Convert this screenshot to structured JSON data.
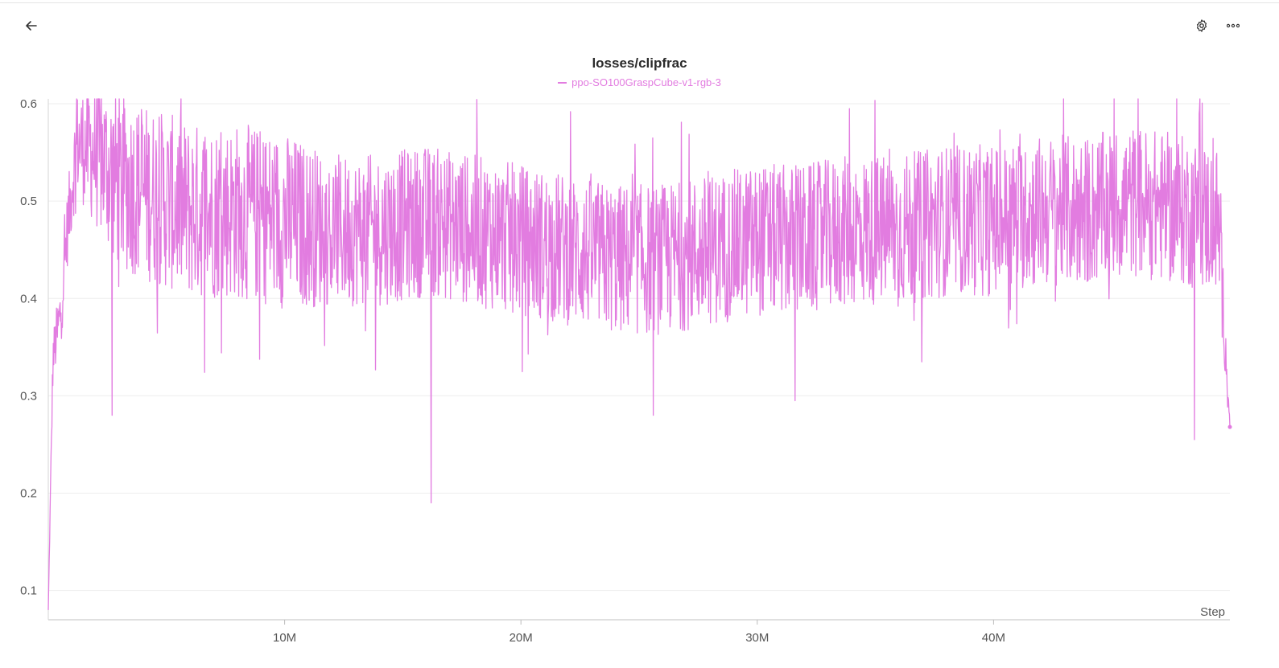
{
  "toolbar": {
    "back_icon": "arrow-left-icon",
    "settings_icon": "gear-icon",
    "more_icon": "more-horizontal-icon"
  },
  "chart_data": {
    "type": "line",
    "title": "losses/clipfrac",
    "xlabel": "Step",
    "ylabel": "",
    "xlim": [
      0,
      50000000
    ],
    "ylim": [
      0.07,
      0.605
    ],
    "x_ticks": [
      10000000,
      20000000,
      30000000,
      40000000
    ],
    "x_tick_labels": [
      "10M",
      "20M",
      "30M",
      "40M"
    ],
    "y_ticks": [
      0.1,
      0.2,
      0.3,
      0.4,
      0.5,
      0.6
    ],
    "y_tick_labels": [
      "0.1",
      "0.2",
      "0.3",
      "0.4",
      "0.5",
      "0.6"
    ],
    "grid": true,
    "legend_position": "top-center",
    "series": [
      {
        "name": "ppo-SO100GraspCube-v1-rgb-3",
        "color": "#e27ce0",
        "x": [
          0,
          200000,
          500000,
          800000,
          1200000,
          2000000,
          3000000,
          4000000,
          5000000,
          6000000,
          8000000,
          10000000,
          12000000,
          14000000,
          16000000,
          18000000,
          20000000,
          22000000,
          24000000,
          26000000,
          28000000,
          30000000,
          32000000,
          34000000,
          36000000,
          38000000,
          40000000,
          42000000,
          44000000,
          46000000,
          48000000,
          49500000,
          50000000
        ],
        "values": [
          0.08,
          0.34,
          0.38,
          0.47,
          0.56,
          0.55,
          0.52,
          0.51,
          0.5,
          0.49,
          0.49,
          0.48,
          0.47,
          0.47,
          0.48,
          0.47,
          0.46,
          0.45,
          0.44,
          0.44,
          0.45,
          0.46,
          0.46,
          0.47,
          0.47,
          0.48,
          0.48,
          0.49,
          0.49,
          0.5,
          0.49,
          0.48,
          0.27
        ],
        "spread": [
          0,
          0.02,
          0.03,
          0.03,
          0.04,
          0.06,
          0.07,
          0.07,
          0.07,
          0.07,
          0.07,
          0.07,
          0.06,
          0.06,
          0.06,
          0.06,
          0.06,
          0.06,
          0.06,
          0.06,
          0.06,
          0.06,
          0.06,
          0.06,
          0.06,
          0.06,
          0.06,
          0.06,
          0.06,
          0.06,
          0.06,
          0.06,
          0
        ],
        "notable_points": [
          {
            "x": 1200000,
            "y": 0.605
          },
          {
            "x": 2700000,
            "y": 0.28
          },
          {
            "x": 16200000,
            "y": 0.19
          },
          {
            "x": 25600000,
            "y": 0.28
          },
          {
            "x": 31600000,
            "y": 0.295
          },
          {
            "x": 33900000,
            "y": 0.595
          },
          {
            "x": 45100000,
            "y": 0.605
          },
          {
            "x": 48500000,
            "y": 0.255
          },
          {
            "x": 48700000,
            "y": 0.59
          },
          {
            "x": 50000000,
            "y": 0.268
          }
        ]
      }
    ]
  }
}
